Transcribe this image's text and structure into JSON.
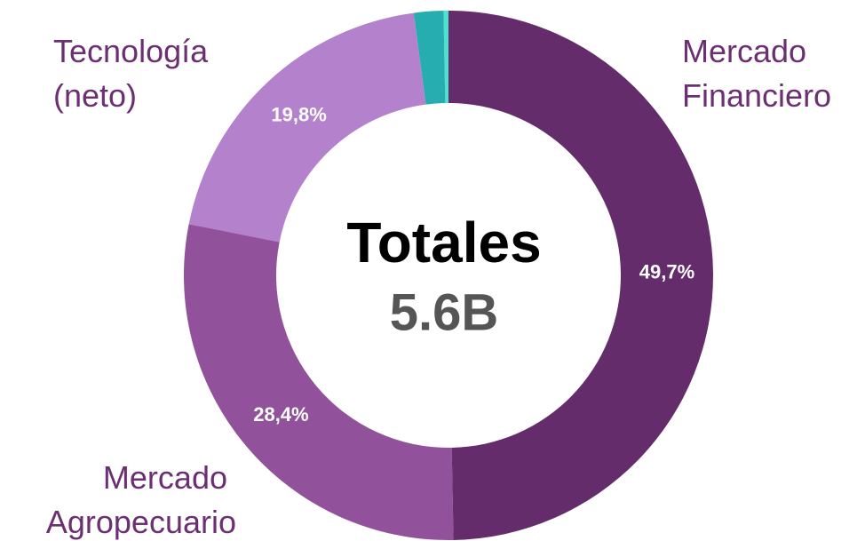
{
  "chart_data": {
    "type": "donut",
    "categories": [
      "Mercado Financiero",
      "Mercado Agropecuario",
      "Tecnología (neto)",
      null,
      null
    ],
    "values": [
      49.7,
      28.4,
      19.8,
      1.8,
      0.3
    ],
    "value_labels": [
      "49,7%",
      "28,4%",
      "19,8%",
      null,
      null
    ],
    "colors": [
      "#642c6a",
      "#91529b",
      "#b482cc",
      "#26adb0",
      "#4fe0d0"
    ],
    "center_title": "Totales",
    "center_value": "5.6B"
  }
}
